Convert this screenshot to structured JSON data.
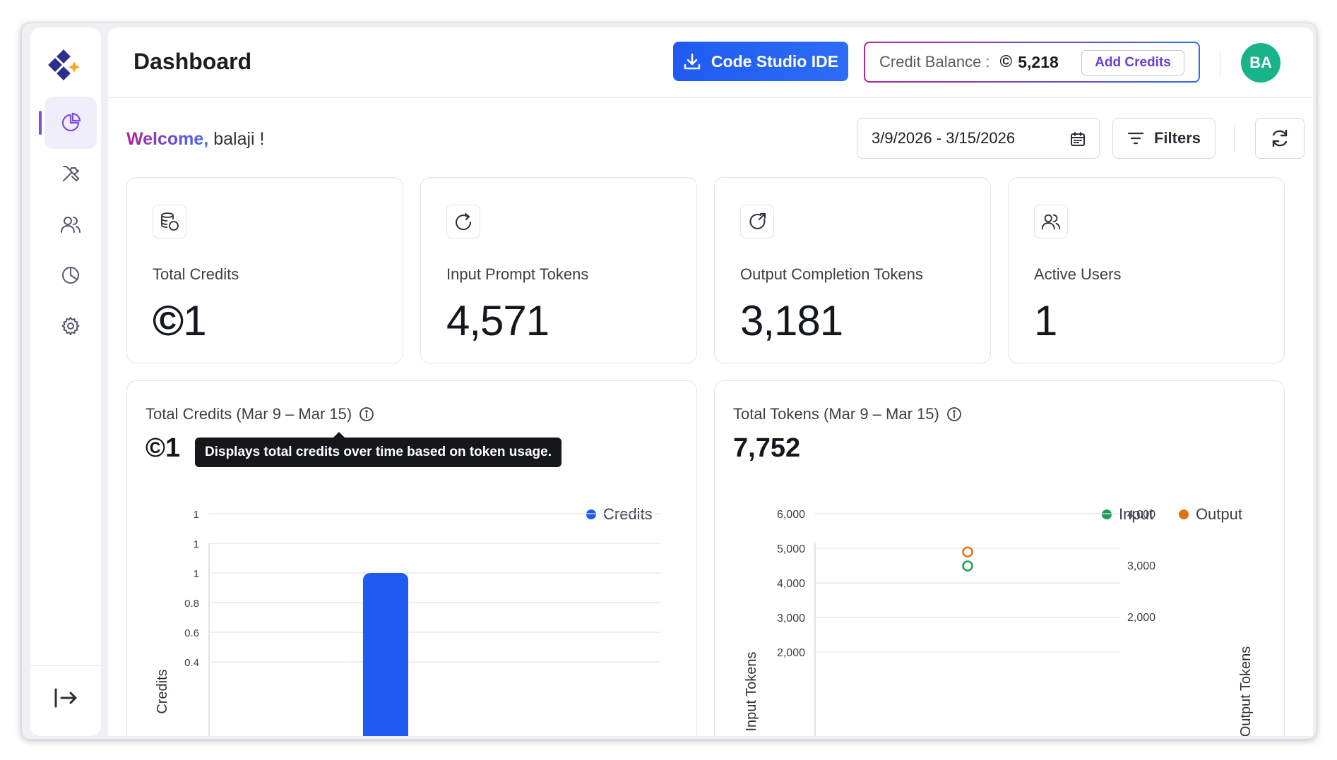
{
  "app": {
    "page_title": "Dashboard"
  },
  "header": {
    "ide_button_label": "Code Studio IDE",
    "credit_balance_label": "Credit Balance :",
    "credit_coin": "©",
    "credit_balance_value": "5,218",
    "add_credits_label": "Add Credits",
    "avatar_initials": "BA"
  },
  "welcome": {
    "greeting": "Welcome,",
    "name": "balaji !"
  },
  "controls": {
    "date_range": "3/9/2026 - 3/15/2026",
    "filters_label": "Filters"
  },
  "sidebar": {
    "items": [
      {
        "icon": "pie-chart-icon",
        "active": true
      },
      {
        "icon": "tools-icon",
        "active": false
      },
      {
        "icon": "users-icon",
        "active": false
      },
      {
        "icon": "analytics-icon",
        "active": false
      },
      {
        "icon": "gear-icon",
        "active": false
      }
    ],
    "bottom_icon": "logout-icon"
  },
  "cards": [
    {
      "icon": "database-coins-icon",
      "label": "Total Credits",
      "coin": "©",
      "value": "1"
    },
    {
      "icon": "refresh-arrow-icon",
      "label": "Input Prompt Tokens",
      "value": "4,571"
    },
    {
      "icon": "output-arrow-icon",
      "label": "Output Completion Tokens",
      "value": "3,181"
    },
    {
      "icon": "users-icon",
      "label": "Active Users",
      "value": "1"
    }
  ],
  "credits_chart": {
    "title": "Total Credits (Mar 9 – Mar 15)",
    "coin": "©",
    "big_value": "1",
    "tooltip": "Displays total credits over time based on token usage.",
    "legend_label": "Credits",
    "legend_color": "#1f5bf2",
    "ylabel": "Credits",
    "y_ticks": [
      "1",
      "1",
      "1",
      "0.8",
      "0.6",
      "0.4"
    ]
  },
  "tokens_chart": {
    "title": "Total Tokens (Mar 9 – Mar 15)",
    "big_value": "7,752",
    "legend": [
      {
        "label": "Input",
        "color": "#1e9e52"
      },
      {
        "label": "Output",
        "color": "#e0730e"
      }
    ],
    "ylabel_left": "Input Tokens",
    "ylabel_right": "Output Tokens",
    "y_ticks_left": [
      "6,000",
      "5,000",
      "4,000",
      "3,000",
      "2,000"
    ],
    "y_ticks_right": [
      "4,000",
      "3,000",
      "2,000"
    ]
  },
  "chart_data": [
    {
      "type": "bar",
      "title": "Total Credits (Mar 9 – Mar 15)",
      "ylabel": "Credits",
      "ylim": [
        0.4,
        1.2
      ],
      "series": [
        {
          "name": "Credits",
          "values": [
            1
          ]
        }
      ],
      "grid": true,
      "legend": "top-right"
    },
    {
      "type": "scatter",
      "title": "Total Tokens (Mar 9 – Mar 15)",
      "ylabel": "Input Tokens",
      "ylabel_right": "Output Tokens",
      "ylim": [
        2000,
        6000
      ],
      "ylim_right": [
        1333,
        4000
      ],
      "series": [
        {
          "name": "Input",
          "values": [
            4571
          ]
        },
        {
          "name": "Output",
          "values": [
            3181
          ]
        }
      ],
      "grid": true,
      "legend": "top-right"
    }
  ]
}
